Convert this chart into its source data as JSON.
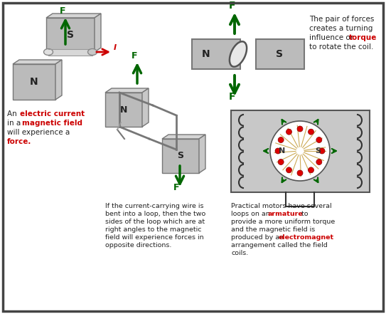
{
  "bg_color": "#ffffff",
  "border_color": "#333333",
  "text_black": "#222222",
  "text_red": "#cc0000",
  "text_green": "#006600",
  "arrow_green": "#006600",
  "arrow_red": "#cc0000",
  "magnet_gray": "#b8b8b8",
  "magnet_dark": "#888888",
  "panel1_text": [
    [
      "An ",
      "#222222",
      false
    ],
    [
      "electric current",
      "#cc0000",
      true
    ],
    [
      "\nin a ",
      "#222222",
      false
    ],
    [
      "magnetic field",
      "#cc0000",
      true
    ],
    [
      "\nwill experience a\nforce.",
      "#222222",
      false
    ]
  ],
  "panel2_text": "If the current-carrying wire is\nbent into a loop, then the two\nsides of the loop which are at\nright angles to the magnetic\nfield will experience forces in\nopposite directions.",
  "panel3_text_parts": [
    "The pair of forces\ncreates a turning\ninfluence or ",
    "torque",
    "\nto rotate the coil."
  ],
  "panel4_text_parts": [
    "Practical motors have several\nloops on an ",
    "armature",
    " to\nprovide a more uniform torque\nand the magnetic field is\nproduced by an ",
    "electromagnet",
    "\narrangement called the field\ncoils."
  ]
}
